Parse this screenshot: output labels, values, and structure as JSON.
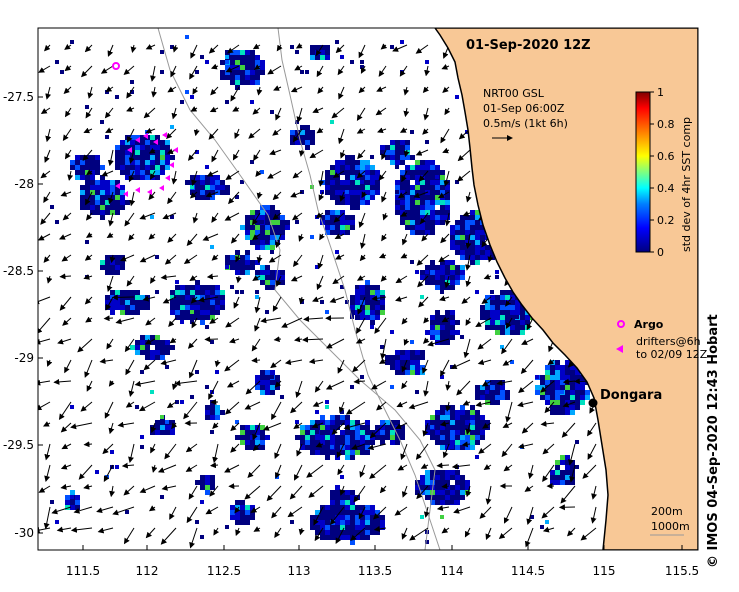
{
  "title": "01-Sep-2020 12Z",
  "current": {
    "source": "NRT00 GSL",
    "time": "01-Sep 06:00Z",
    "scale": "0.5m/s (1kt 6h)"
  },
  "colorbar": {
    "label": "std dev of 4hr SST comp",
    "ticks": [
      "0",
      "0.2",
      "0.4",
      "0.6",
      "0.8",
      "1"
    ],
    "colors": [
      "#00007f",
      "#0000ff",
      "#007fff",
      "#00ffff",
      "#7fff7f",
      "#ffff00",
      "#ff7f00",
      "#ff0000",
      "#7f0000"
    ]
  },
  "legend": {
    "argo_label": "Argo",
    "drifters_line1": "drifters@6h",
    "drifters_line2": "to 02/09 12Z"
  },
  "place": "Dongara",
  "isobaths": {
    "label1": "200m",
    "label2": "1000m"
  },
  "axes": {
    "xlabels": [
      "111.5",
      "112",
      "112.5",
      "113",
      "113.5",
      "114",
      "114.5",
      "115",
      "115.5"
    ],
    "ylabels": [
      "-27.5",
      "-28",
      "-28.5",
      "-29",
      "-29.5",
      "-30"
    ]
  },
  "credit": "© IMOS 04-Sep-2020 12:43 Hobart",
  "colors": {
    "land": "#f8c896",
    "marker": "#ff00ff"
  }
}
